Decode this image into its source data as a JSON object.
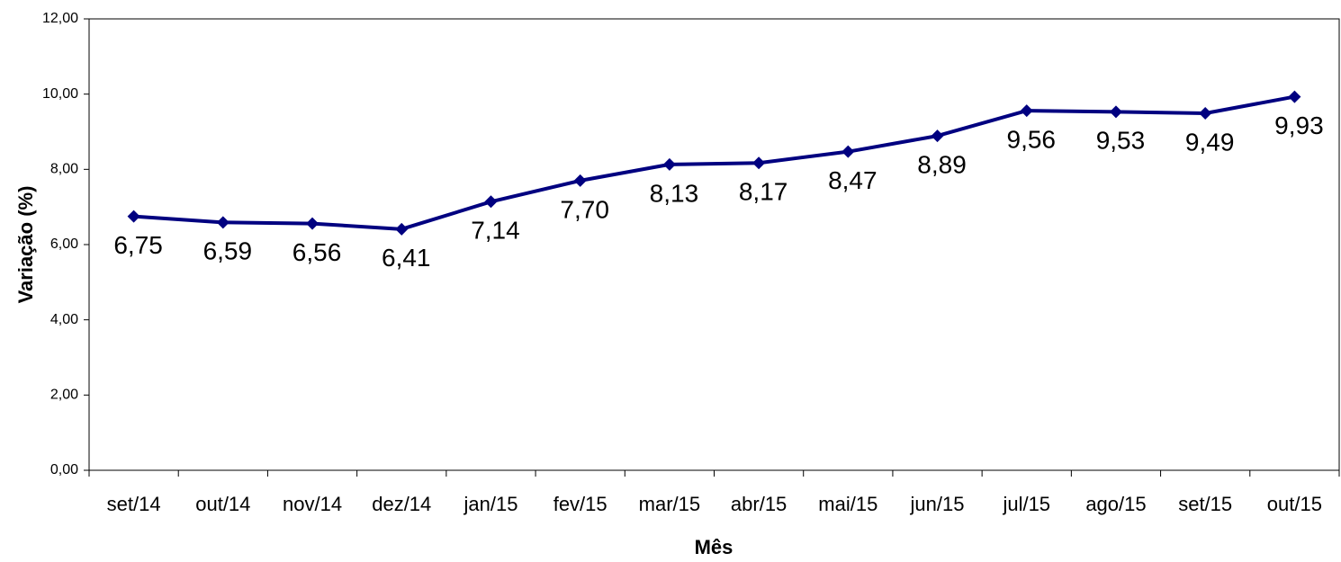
{
  "chart_data": {
    "type": "line",
    "x_label": "Mês",
    "y_label": "Variação (%)",
    "categories": [
      "set/14",
      "out/14",
      "nov/14",
      "dez/14",
      "jan/15",
      "fev/15",
      "mar/15",
      "abr/15",
      "mai/15",
      "jun/15",
      "jul/15",
      "ago/15",
      "set/15",
      "out/15"
    ],
    "values": [
      6.75,
      6.59,
      6.56,
      6.41,
      7.14,
      7.7,
      8.13,
      8.17,
      8.47,
      8.89,
      9.56,
      9.53,
      9.49,
      9.93
    ],
    "value_labels": [
      "6,75",
      "6,59",
      "6,56",
      "6,41",
      "7,14",
      "7,70",
      "8,13",
      "8,17",
      "8,47",
      "8,89",
      "9,56",
      "9,53",
      "9,49",
      "9,93"
    ],
    "color": "#000080",
    "ylim": [
      0,
      12
    ],
    "yticks": [
      {
        "value": 0,
        "label": "0,00"
      },
      {
        "value": 2,
        "label": "2,00"
      },
      {
        "value": 4,
        "label": "4,00"
      },
      {
        "value": 6,
        "label": "6,00"
      },
      {
        "value": 8,
        "label": "8,00"
      },
      {
        "value": 10,
        "label": "10,00"
      },
      {
        "value": 12,
        "label": "12,00"
      }
    ]
  }
}
